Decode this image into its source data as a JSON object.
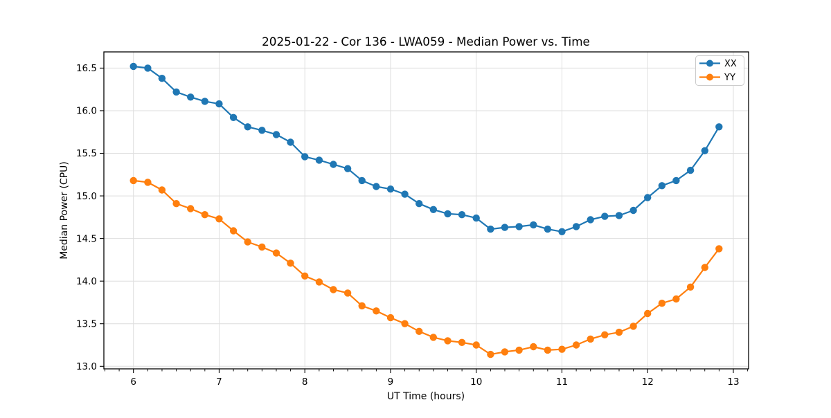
{
  "chart_data": {
    "type": "line",
    "title": "2025-01-22 - Cor 136 - LWA059 - Median Power vs. Time",
    "xlabel": "UT Time (hours)",
    "ylabel": "Median Power (CPU)",
    "xlim": [
      5.655,
      13.178
    ],
    "ylim": [
      12.97,
      16.69
    ],
    "xticks": [
      6,
      7,
      8,
      9,
      10,
      11,
      12,
      13
    ],
    "xtick_labels": [
      "6",
      "7",
      "8",
      "9",
      "10",
      "11",
      "12",
      "13"
    ],
    "x_minor_step": 0.16667,
    "yticks": [
      13.0,
      13.5,
      14.0,
      14.5,
      15.0,
      15.5,
      16.0,
      16.5
    ],
    "ytick_labels": [
      "13.0",
      "13.5",
      "14.0",
      "14.5",
      "15.0",
      "15.5",
      "16.0",
      "16.5"
    ],
    "grid": true,
    "grid_color": "#dedede",
    "background": "#ffffff",
    "marker": "circle",
    "legend_position": "upper right",
    "x": [
      6.0,
      6.167,
      6.333,
      6.5,
      6.667,
      6.833,
      7.0,
      7.167,
      7.333,
      7.5,
      7.667,
      7.833,
      8.0,
      8.167,
      8.333,
      8.5,
      8.667,
      8.833,
      9.0,
      9.167,
      9.333,
      9.5,
      9.667,
      9.833,
      10.0,
      10.167,
      10.333,
      10.5,
      10.667,
      10.833,
      11.0,
      11.167,
      11.333,
      11.5,
      11.667,
      11.833,
      12.0,
      12.167,
      12.333,
      12.5,
      12.667,
      12.833
    ],
    "series": [
      {
        "name": "XX",
        "color": "#1f77b4",
        "values": [
          16.52,
          16.5,
          16.38,
          16.22,
          16.16,
          16.11,
          16.08,
          15.92,
          15.81,
          15.77,
          15.72,
          15.63,
          15.46,
          15.42,
          15.37,
          15.32,
          15.18,
          15.11,
          15.08,
          15.02,
          14.91,
          14.84,
          14.79,
          14.78,
          14.74,
          14.61,
          14.63,
          14.64,
          14.66,
          14.61,
          14.58,
          14.64,
          14.72,
          14.76,
          14.77,
          14.83,
          14.98,
          15.12,
          15.18,
          15.3,
          15.53,
          15.81
        ]
      },
      {
        "name": "YY",
        "color": "#ff7f0e",
        "values": [
          15.18,
          15.16,
          15.07,
          14.91,
          14.85,
          14.78,
          14.73,
          14.59,
          14.46,
          14.4,
          14.33,
          14.21,
          14.06,
          13.99,
          13.9,
          13.86,
          13.71,
          13.65,
          13.57,
          13.5,
          13.41,
          13.34,
          13.3,
          13.28,
          13.25,
          13.14,
          13.17,
          13.19,
          13.23,
          13.19,
          13.2,
          13.25,
          13.32,
          13.37,
          13.4,
          13.47,
          13.62,
          13.74,
          13.79,
          13.93,
          14.16,
          14.38
        ]
      }
    ]
  }
}
